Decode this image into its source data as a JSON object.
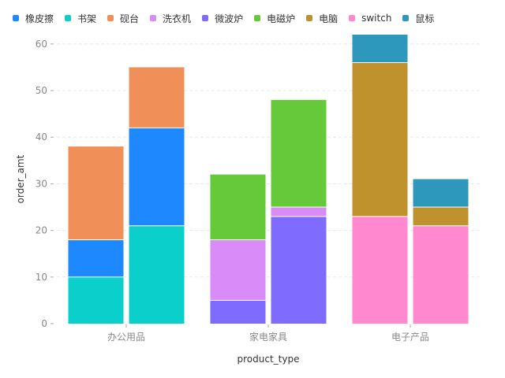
{
  "chart_data": {
    "type": "bar",
    "stacked": true,
    "grouped": true,
    "xlabel": "product_type",
    "ylabel": "order_amt",
    "ylim": [
      0,
      62
    ],
    "yticks": [
      0,
      10,
      20,
      30,
      40,
      50,
      60
    ],
    "grid": true,
    "legend_position": "top-left",
    "legend": [
      {
        "name": "橡皮擦",
        "color": "#1E88FF"
      },
      {
        "name": "书架",
        "color": "#0BCFCB"
      },
      {
        "name": "砚台",
        "color": "#F08F58"
      },
      {
        "name": "洗衣机",
        "color": "#D98BF7"
      },
      {
        "name": "微波炉",
        "color": "#7F6CFF"
      },
      {
        "name": "电磁炉",
        "color": "#66C93A"
      },
      {
        "name": "电脑",
        "color": "#C0922E"
      },
      {
        "name": "switch",
        "color": "#FF88CF"
      },
      {
        "name": "鼠标",
        "color": "#2E98BC"
      }
    ],
    "categories": [
      {
        "name": "办公用品",
        "bars": [
          {
            "segments": [
              {
                "series": "书架",
                "value": 10
              },
              {
                "series": "橡皮擦",
                "value": 8
              },
              {
                "series": "砚台",
                "value": 20
              }
            ]
          },
          {
            "segments": [
              {
                "series": "书架",
                "value": 21
              },
              {
                "series": "橡皮擦",
                "value": 21
              },
              {
                "series": "砚台",
                "value": 13
              }
            ]
          }
        ]
      },
      {
        "name": "家电家具",
        "bars": [
          {
            "segments": [
              {
                "series": "微波炉",
                "value": 5
              },
              {
                "series": "洗衣机",
                "value": 13
              },
              {
                "series": "电磁炉",
                "value": 14
              }
            ]
          },
          {
            "segments": [
              {
                "series": "微波炉",
                "value": 23
              },
              {
                "series": "洗衣机",
                "value": 2
              },
              {
                "series": "电磁炉",
                "value": 23
              }
            ]
          }
        ]
      },
      {
        "name": "电子产品",
        "bars": [
          {
            "segments": [
              {
                "series": "switch",
                "value": 23
              },
              {
                "series": "电脑",
                "value": 33
              },
              {
                "series": "鼠标",
                "value": 6
              }
            ]
          },
          {
            "segments": [
              {
                "series": "switch",
                "value": 21
              },
              {
                "series": "电脑",
                "value": 4
              },
              {
                "series": "鼠标",
                "value": 6
              }
            ]
          }
        ]
      }
    ]
  },
  "styles": {
    "tick_color": "#888888",
    "grid_color": "#E8E8E8",
    "axis_title_color": "#333333",
    "bar_separator_color": "#FFFFFF"
  }
}
